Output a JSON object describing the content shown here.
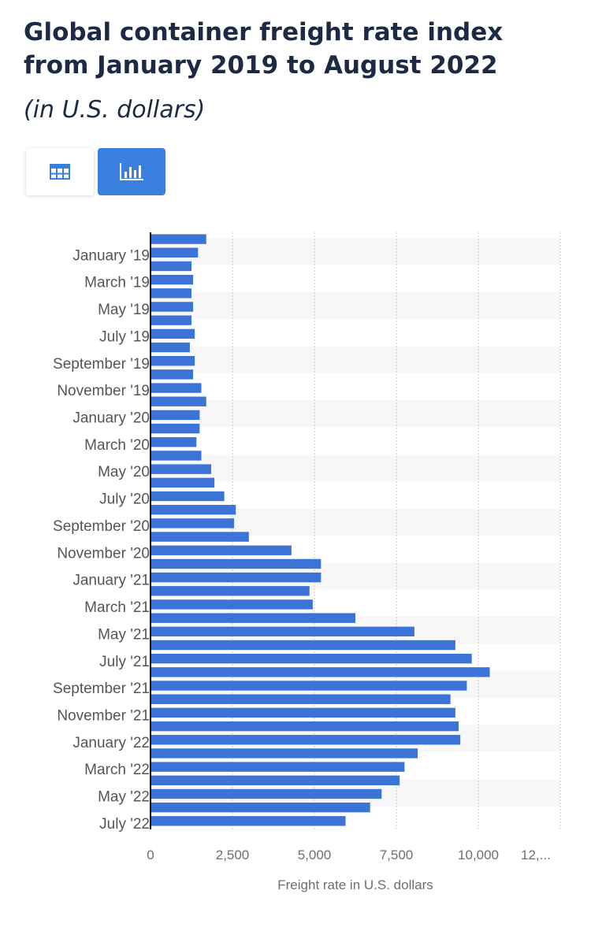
{
  "header": {
    "title": "Global container freight rate index from January 2019 to August 2022",
    "subtitle": "(in U.S. dollars)"
  },
  "view_toggle": {
    "table_icon": "table-grid-icon",
    "chart_icon": "bar-chart-icon",
    "active": "chart",
    "active_color": "#3a80e0"
  },
  "colors": {
    "bar": "#3b73d6",
    "band": "#f7f7f7",
    "grid": "#c8c8c8",
    "axis": "#000000"
  },
  "chart_data": {
    "type": "bar",
    "orientation": "horizontal",
    "xlabel": "Freight rate in U.S. dollars",
    "ylabel": "",
    "xlim": [
      0,
      12500
    ],
    "xticks": [
      "0",
      "2,500",
      "5,000",
      "7,500",
      "10,000",
      "12,..."
    ],
    "ytick_labels": [
      "January '19",
      "March '19",
      "May '19",
      "July '19",
      "September '19",
      "November '19",
      "January '20",
      "March '20",
      "May '20",
      "July '20",
      "September '20",
      "November '20",
      "January '21",
      "March '21",
      "May '21",
      "July '21",
      "September '21",
      "November '21",
      "January '22",
      "March '22",
      "May '22",
      "July '22"
    ],
    "grid": true,
    "series_values": [
      1700,
      1450,
      1250,
      1300,
      1250,
      1300,
      1250,
      1350,
      1200,
      1350,
      1300,
      1550,
      1700,
      1500,
      1500,
      1400,
      1550,
      1850,
      1950,
      2250,
      2600,
      2550,
      3000,
      4300,
      5200,
      5200,
      4850,
      4950,
      6250,
      8050,
      9300,
      9800,
      10350,
      9650,
      9150,
      9300,
      9400,
      9450,
      8150,
      7750,
      7600,
      7050,
      6700,
      5950
    ]
  }
}
